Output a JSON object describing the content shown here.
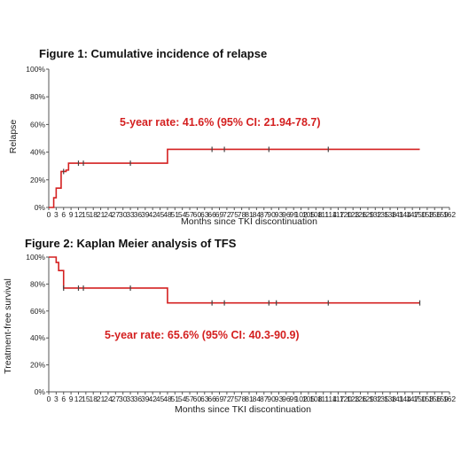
{
  "colors": {
    "curve": "#d42020",
    "axis": "#555555",
    "text": "#222222",
    "censor": "#444444"
  },
  "chart_data": [
    {
      "type": "line",
      "title": "Figure 1: Cumulative incidence of relapse",
      "xlabel": "Months since TKI discontinuation",
      "ylabel": "Relapse",
      "xlim": [
        0,
        162
      ],
      "ylim": [
        0,
        100
      ],
      "x_ticks": [
        0,
        3,
        6,
        9,
        12,
        15,
        18,
        21,
        24,
        27,
        30,
        33,
        36,
        39,
        42,
        45,
        48,
        51,
        54,
        57,
        60,
        63,
        66,
        69,
        72,
        75,
        78,
        81,
        84,
        87,
        90,
        93,
        96,
        99,
        102,
        105,
        108,
        111,
        114,
        117,
        120,
        123,
        126,
        129,
        132,
        135,
        138,
        141,
        144,
        147,
        150,
        153,
        156,
        159,
        162
      ],
      "y_ticks": [
        0,
        20,
        40,
        60,
        80,
        100
      ],
      "y_tick_labels": [
        "0%",
        "20%",
        "40%",
        "60%",
        "80%",
        "100%"
      ],
      "grid": false,
      "step_x": [
        0,
        2,
        3,
        4,
        5,
        6,
        7,
        8,
        10,
        48,
        150
      ],
      "step_y": [
        0,
        7,
        14,
        14,
        26,
        26,
        27,
        32,
        32,
        42,
        42
      ],
      "censor_x": [
        6,
        12,
        14,
        33,
        66,
        71,
        89,
        113
      ],
      "annotation": "5-year rate: 41.6% (95% CI: 21.94-78.7)"
    },
    {
      "type": "line",
      "title": "Figure 2: Kaplan Meier analysis of TFS",
      "xlabel": "Months since TKI discontinuation",
      "ylabel": "Treatment-free survival",
      "xlim": [
        0,
        162
      ],
      "ylim": [
        0,
        100
      ],
      "x_ticks": [
        0,
        3,
        6,
        9,
        12,
        15,
        18,
        21,
        24,
        27,
        30,
        33,
        36,
        39,
        42,
        45,
        48,
        51,
        54,
        57,
        60,
        63,
        66,
        69,
        72,
        75,
        78,
        81,
        84,
        87,
        90,
        93,
        96,
        99,
        102,
        105,
        108,
        111,
        114,
        117,
        120,
        123,
        126,
        129,
        132,
        135,
        138,
        141,
        144,
        147,
        150,
        153,
        156,
        159,
        162
      ],
      "y_ticks": [
        0,
        20,
        40,
        60,
        80,
        100
      ],
      "y_tick_labels": [
        "0%",
        "20%",
        "40%",
        "60%",
        "80%",
        "100%"
      ],
      "grid": false,
      "step_x": [
        0,
        3,
        4,
        6,
        48,
        150
      ],
      "step_y": [
        100,
        96,
        90,
        77,
        66,
        66
      ],
      "censor_x": [
        6,
        12,
        14,
        33,
        66,
        71,
        89,
        92,
        113,
        150
      ],
      "annotation": "5-year rate: 65.6% (95% CI: 40.3-90.9)"
    }
  ]
}
